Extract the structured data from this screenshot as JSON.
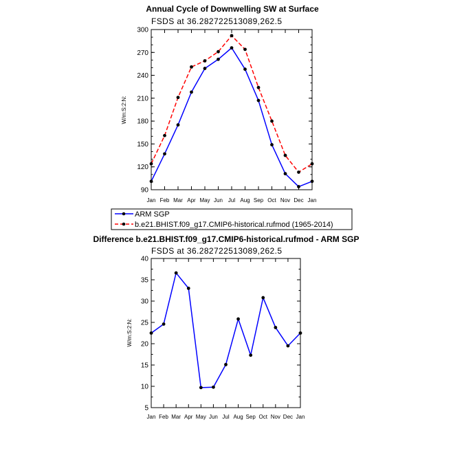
{
  "chart_data": [
    {
      "type": "line",
      "title": "Annual Cycle of Downwelling SW at Surface",
      "subtitle": "FSDS at 36.282722513089,262.5",
      "ylabel": "W/m:S:2:N:",
      "categories": [
        "Jan",
        "Feb",
        "Mar",
        "Apr",
        "May",
        "Jun",
        "Jul",
        "Aug",
        "Sep",
        "Oct",
        "Nov",
        "Dec",
        "Jan"
      ],
      "ylim": [
        90,
        300
      ],
      "yticks": [
        90,
        120,
        150,
        180,
        210,
        240,
        270,
        300
      ],
      "series": [
        {
          "name": "ARM  SGP",
          "color": "#0000ff",
          "style": "solid",
          "values": [
            101,
            137,
            175,
            218,
            249,
            261,
            276,
            248,
            207,
            149,
            111,
            94,
            101
          ]
        },
        {
          "name": "b.e21.BHIST.f09_g17.CMIP6-historical.rufmod (1965-2014)",
          "color": "#ff0000",
          "style": "dashed",
          "values": [
            124,
            161,
            211,
            251,
            259,
            271,
            292,
            274,
            224,
            180,
            135,
            113,
            124
          ]
        }
      ]
    },
    {
      "type": "line",
      "title": "Difference b.e21.BHIST.f09_g17.CMIP6-historical.rufmod - ARM SGP",
      "subtitle": "FSDS at 36.282722513089,262.5",
      "ylabel": "W/m:S:2:N:",
      "categories": [
        "Jan",
        "Feb",
        "Mar",
        "Apr",
        "May",
        "Jun",
        "Jul",
        "Aug",
        "Sep",
        "Oct",
        "Nov",
        "Dec",
        "Jan"
      ],
      "ylim": [
        5,
        40
      ],
      "yticks": [
        5,
        10,
        15,
        20,
        25,
        30,
        35,
        40
      ],
      "series": [
        {
          "color": "#0000ff",
          "style": "solid",
          "values": [
            22.5,
            24.6,
            36.6,
            33.0,
            9.7,
            9.8,
            15.1,
            25.8,
            17.3,
            30.8,
            23.8,
            19.5,
            22.5
          ]
        }
      ]
    }
  ]
}
